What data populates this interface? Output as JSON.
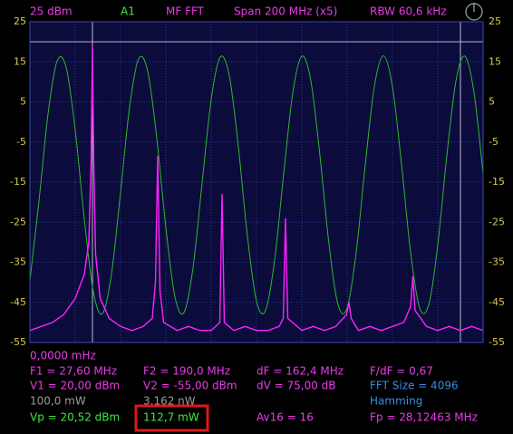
{
  "header": {
    "ref_level": "25 dBm",
    "channel": "A1",
    "mode": "MF FFT",
    "span": "Span 200 MHz (x5)",
    "rbw": "RBW 60,6 kHz"
  },
  "chart_data": {
    "type": "line",
    "xlim": [
      0,
      200
    ],
    "ylim": [
      -55,
      25
    ],
    "yticks": [
      25,
      15,
      5,
      -5,
      -15,
      -25,
      -35,
      -45,
      -55
    ],
    "grid": true,
    "vlines": [
      27.6,
      190
    ],
    "hlines": [
      20
    ],
    "series": [
      {
        "color": "#2eb82e",
        "x": [
          0,
          4,
          8,
          12,
          16,
          20,
          24,
          28,
          32,
          36,
          40,
          44,
          48,
          52,
          56,
          60,
          64,
          68,
          72,
          76,
          80,
          84,
          88,
          92,
          96,
          100,
          104,
          108,
          112,
          116,
          120,
          124,
          128,
          132,
          136,
          140,
          144,
          148,
          152,
          156,
          160,
          164,
          168,
          172,
          176,
          180,
          184,
          188,
          192,
          196,
          200
        ],
        "values": [
          -39.5,
          -19.7,
          2.0,
          15.2,
          13.6,
          -2.0,
          -24.2,
          -42.4,
          -47.8,
          -37.9,
          -17.5,
          3.8,
          15.8,
          12.6,
          -4.1,
          -26.4,
          -43.6,
          -47.5,
          -36.3,
          -15.2,
          5.6,
          16.2,
          11.5,
          -6.2,
          -28.5,
          -44.7,
          -47.0,
          -34.4,
          -12.9,
          7.2,
          16.4,
          10.2,
          -8.4,
          -30.5,
          -45.6,
          -46.4,
          -32.5,
          -10.7,
          8.8,
          16.5,
          8.8,
          -10.6,
          -32.5,
          -46.4,
          -45.6,
          -30.6,
          -8.4,
          10.2,
          16.4,
          7.3,
          -12.9
        ]
      },
      {
        "color": "#ff22ff",
        "x": [
          0,
          5,
          10,
          15,
          20,
          24,
          26,
          27,
          27.6,
          28.2,
          29,
          31,
          35,
          40,
          45,
          50,
          54,
          55.4,
          56.4,
          57.4,
          59,
          65,
          70,
          75,
          80,
          83.8,
          84.8,
          85.8,
          90,
          95,
          100,
          105,
          110,
          111.8,
          112.8,
          113.8,
          120,
          125,
          130,
          135,
          139.8,
          140.8,
          141.8,
          145,
          150,
          155,
          160,
          165,
          168,
          169,
          170,
          175,
          180,
          185,
          190,
          195,
          200
        ],
        "values": [
          -52,
          -51,
          -50,
          -48,
          -44,
          -38,
          -30,
          -10,
          19.1,
          -12,
          -33,
          -44,
          -49,
          -51,
          -52,
          -51,
          -49,
          -40,
          -8.4,
          -42,
          -50,
          -52,
          -51,
          -52,
          -52,
          -50,
          -18,
          -50,
          -52,
          -51,
          -52,
          -52,
          -51,
          -49,
          -24,
          -49,
          -52,
          -51,
          -52,
          -51,
          -48,
          -45,
          -49,
          -52,
          -51,
          -52,
          -51,
          -50,
          -46,
          -38.5,
          -47,
          -51,
          -52,
          -51,
          -52,
          -51,
          -52
        ]
      }
    ]
  },
  "readouts": {
    "start": "0,0000 mHz",
    "f1": "F1 = 27,60 MHz",
    "f2": "F2 = 190,0 MHz",
    "df": "dF = 162,4 MHz",
    "fdf": "F/dF = 0,67",
    "v1": "V1 = 20,00 dBm",
    "v2": "V2 = -55,00 dBm",
    "dv": "dV = 75,00 dB",
    "fft_size": "FFT Size = 4096",
    "p1": "100,0 mW",
    "p2": "3,162 nW",
    "window": "Hamming",
    "vp": "Vp = 20,52 dBm",
    "pp": "112,7 mW",
    "avg": "Av16 = 16",
    "fp": "Fp = 28,12463 MHz"
  }
}
